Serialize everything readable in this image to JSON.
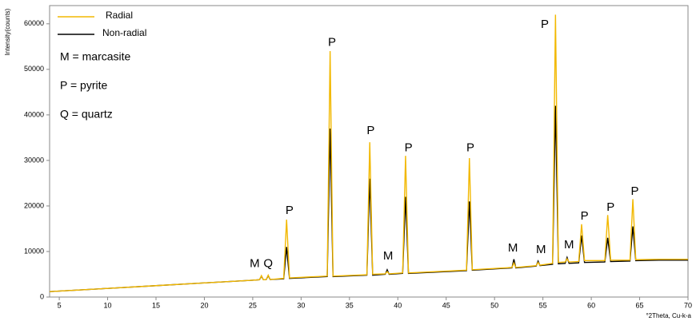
{
  "chart_data": {
    "type": "line",
    "y_label": "Intensity(counts)",
    "x_label": "°2Theta, Cu-k-a",
    "x": [
      4,
      10,
      15,
      20,
      25,
      25.7,
      25.9,
      26.1,
      26.4,
      26.6,
      26.8,
      28.2,
      28.5,
      28.8,
      32.7,
      33.0,
      33.3,
      36.8,
      37.1,
      37.4,
      38.7,
      38.9,
      39.1,
      40.5,
      40.8,
      41.1,
      47.1,
      47.4,
      47.7,
      51.8,
      52.0,
      52.2,
      54.3,
      54.5,
      54.7,
      56.0,
      56.3,
      56.6,
      57.3,
      57.5,
      57.7,
      58.7,
      59.0,
      59.3,
      61.4,
      61.7,
      62.0,
      64.0,
      64.3,
      64.6,
      67,
      70
    ],
    "series": [
      {
        "name": "Non-radial",
        "color": "#000000",
        "values": [
          1200,
          1900,
          2500,
          3100,
          3700,
          3800,
          4600,
          3800,
          3850,
          4700,
          3850,
          4000,
          11000,
          4100,
          4500,
          37000,
          4500,
          4800,
          26000,
          4800,
          5000,
          6000,
          5000,
          5200,
          22000,
          5200,
          5800,
          21000,
          5900,
          6400,
          8300,
          6400,
          6800,
          7900,
          6900,
          7200,
          42000,
          7300,
          7400,
          8700,
          7400,
          7500,
          13500,
          7600,
          7700,
          13000,
          7800,
          7900,
          15500,
          8000,
          8100,
          8100
        ]
      },
      {
        "name": "Radial",
        "color": "#f2b800",
        "values": [
          1200,
          1900,
          2500,
          3100,
          3700,
          3800,
          4700,
          3800,
          3850,
          4800,
          3850,
          4100,
          17000,
          4200,
          4600,
          54000,
          4600,
          4900,
          34000,
          5000,
          5100,
          5600,
          5100,
          5300,
          31000,
          5300,
          5900,
          30500,
          6000,
          6500,
          7500,
          6500,
          6900,
          7600,
          7000,
          7400,
          62000,
          7600,
          7700,
          8400,
          7700,
          7800,
          16000,
          8000,
          8000,
          18000,
          8100,
          8100,
          21500,
          8200,
          8300,
          8300
        ]
      }
    ],
    "xlim": [
      4,
      70
    ],
    "xticks": [
      5,
      10,
      15,
      20,
      25,
      30,
      35,
      40,
      45,
      50,
      55,
      60,
      65,
      70
    ],
    "ylim": [
      0,
      64000
    ],
    "yticks": [
      0,
      10000,
      20000,
      30000,
      40000,
      50000,
      60000
    ],
    "notes": [
      "M = marcasite",
      "P = pyrite",
      "Q = quartz"
    ],
    "annotations": [
      {
        "text": "M",
        "x": 25.2,
        "y": 7300
      },
      {
        "text": "Q",
        "x": 26.6,
        "y": 7300
      },
      {
        "text": "P",
        "x": 28.8,
        "y": 18900
      },
      {
        "text": "P",
        "x": 33.2,
        "y": 55800
      },
      {
        "text": "P",
        "x": 37.2,
        "y": 36500
      },
      {
        "text": "M",
        "x": 39.0,
        "y": 8900
      },
      {
        "text": "P",
        "x": 41.1,
        "y": 32700
      },
      {
        "text": "P",
        "x": 47.5,
        "y": 32700
      },
      {
        "text": "M",
        "x": 51.9,
        "y": 10700
      },
      {
        "text": "M",
        "x": 54.8,
        "y": 10300
      },
      {
        "text": "P",
        "x": 55.2,
        "y": 59800
      },
      {
        "text": "M",
        "x": 57.7,
        "y": 11400
      },
      {
        "text": "P",
        "x": 59.3,
        "y": 17700
      },
      {
        "text": "P",
        "x": 62.0,
        "y": 19600
      },
      {
        "text": "P",
        "x": 64.5,
        "y": 23100
      }
    ]
  }
}
